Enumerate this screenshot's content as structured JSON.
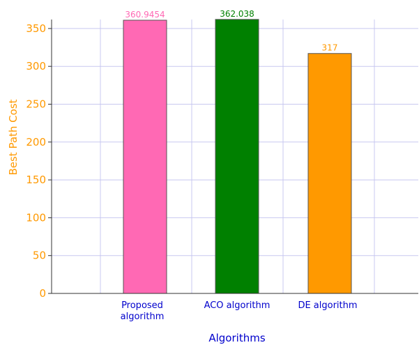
{
  "chart_data": {
    "type": "bar",
    "categories": [
      "Proposed algorithm",
      "ACO algorithm",
      "DE  algorithm"
    ],
    "category_label_lines": [
      [
        "Proposed",
        "algorithm"
      ],
      [
        "ACO algorithm"
      ],
      [
        "DE  algorithm"
      ]
    ],
    "values": [
      360.9454,
      362.038,
      317
    ],
    "data_labels": [
      "360.9454",
      "362.038",
      "317"
    ],
    "bar_colors": [
      "#ff69b4",
      "#008000",
      "#ff9900"
    ],
    "xlabel": "Algorithms",
    "ylabel": "Best Path Cost",
    "ylim": [
      0,
      360
    ],
    "yticks": [
      0,
      50,
      100,
      150,
      200,
      250,
      300,
      350
    ],
    "grid": true,
    "colors": {
      "axis_text": "#ff9900",
      "category_text": "#0000cc",
      "gridline": "#c8c8f0",
      "bar_border": "#555555"
    }
  }
}
